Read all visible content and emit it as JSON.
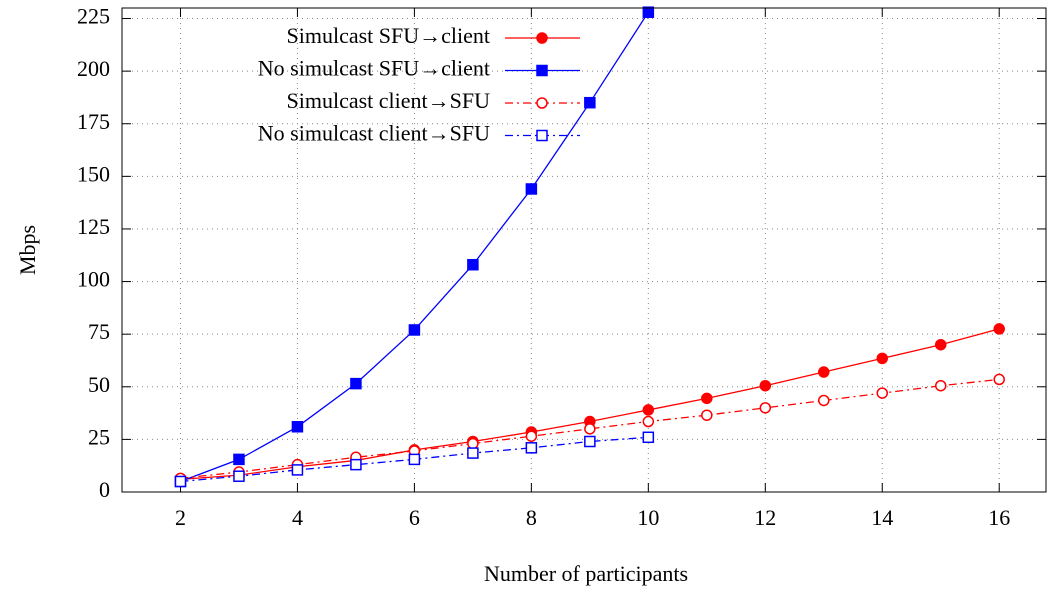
{
  "chart_data": {
    "type": "line",
    "x_label": "Number of participants",
    "y_label": "Mbps",
    "xlim": [
      1,
      16.8
    ],
    "ylim": [
      0,
      230
    ],
    "xticks": [
      2,
      4,
      6,
      8,
      10,
      12,
      14,
      16
    ],
    "yticks": [
      0,
      25,
      50,
      75,
      100,
      125,
      150,
      175,
      200,
      225
    ],
    "grid": true,
    "legend": "top left",
    "series": [
      {
        "name": "Simulcast SFU→client",
        "color": "#ff0000",
        "marker": "circle",
        "filled": true,
        "dash": "solid",
        "x": [
          2,
          3,
          4,
          5,
          6,
          7,
          8,
          9,
          10,
          11,
          12,
          13,
          14,
          15,
          16
        ],
        "values": [
          6,
          8,
          12,
          15,
          20,
          24,
          28.5,
          33.5,
          39,
          44.5,
          50.5,
          57,
          63.5,
          70,
          77.5
        ]
      },
      {
        "name": "No simulcast SFU→client",
        "color": "#0000ff",
        "marker": "square",
        "filled": true,
        "dash": "solid",
        "x": [
          2,
          3,
          4,
          5,
          6,
          7,
          8,
          9,
          10
        ],
        "values": [
          5,
          15.5,
          31,
          51.5,
          77,
          108,
          144,
          185,
          228
        ]
      },
      {
        "name": "Simulcast client→SFU",
        "color": "#ff0000",
        "marker": "circle",
        "filled": false,
        "dash": "dashdot",
        "x": [
          2,
          3,
          4,
          5,
          6,
          7,
          8,
          9,
          10,
          11,
          12,
          13,
          14,
          15,
          16
        ],
        "values": [
          6.5,
          9.5,
          13,
          16.5,
          19.5,
          23,
          26.5,
          30,
          33.5,
          36.5,
          40,
          43.5,
          47,
          50.5,
          53.5
        ]
      },
      {
        "name": "No simulcast client→SFU",
        "color": "#0000ff",
        "marker": "square",
        "filled": false,
        "dash": "dashdot",
        "x": [
          2,
          3,
          4,
          5,
          6,
          7,
          8,
          9,
          10
        ],
        "values": [
          5,
          7.5,
          10.5,
          13,
          15.5,
          18.5,
          21,
          24,
          26
        ]
      }
    ]
  }
}
